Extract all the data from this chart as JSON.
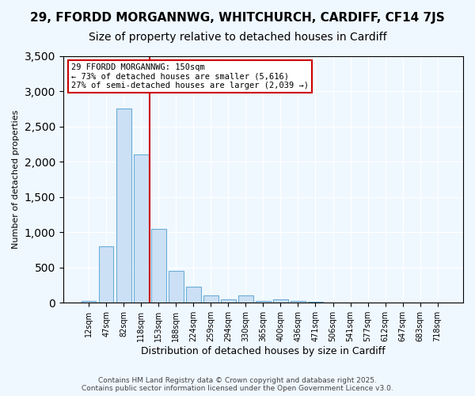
{
  "title_line1": "29, FFORDD MORGANNWG, WHITCHURCH, CARDIFF, CF14 7JS",
  "title_line2": "Size of property relative to detached houses in Cardiff",
  "xlabel": "Distribution of detached houses by size in Cardiff",
  "ylabel": "Number of detached properties",
  "bar_color": "#cce0f5",
  "bar_edge_color": "#6baed6",
  "vline_color": "#cc0000",
  "vline_x": 3.5,
  "annotation_text": "29 FFORDD MORGANNWG: 150sqm\n← 73% of detached houses are smaller (5,616)\n27% of semi-detached houses are larger (2,039 →)",
  "annotation_box_color": "#ffffff",
  "annotation_box_edge": "#cc0000",
  "categories": [
    "12sqm",
    "47sqm",
    "82sqm",
    "118sqm",
    "153sqm",
    "188sqm",
    "224sqm",
    "259sqm",
    "294sqm",
    "330sqm",
    "365sqm",
    "400sqm",
    "436sqm",
    "471sqm",
    "506sqm",
    "541sqm",
    "577sqm",
    "612sqm",
    "647sqm",
    "683sqm",
    "718sqm"
  ],
  "values": [
    20,
    800,
    2750,
    2100,
    1050,
    450,
    230,
    100,
    50,
    100,
    20,
    50,
    20,
    10,
    5,
    5,
    5,
    3,
    2,
    2,
    2
  ],
  "ylim": [
    0,
    3500
  ],
  "yticks": [
    0,
    500,
    1000,
    1500,
    2000,
    2500,
    3000,
    3500
  ],
  "footer": "Contains HM Land Registry data © Crown copyright and database right 2025.\nContains public sector information licensed under the Open Government Licence v3.0.",
  "bg_color": "#f0f8ff",
  "plot_bg_color": "#f0f8ff",
  "title_fontsize": 11,
  "subtitle_fontsize": 10
}
